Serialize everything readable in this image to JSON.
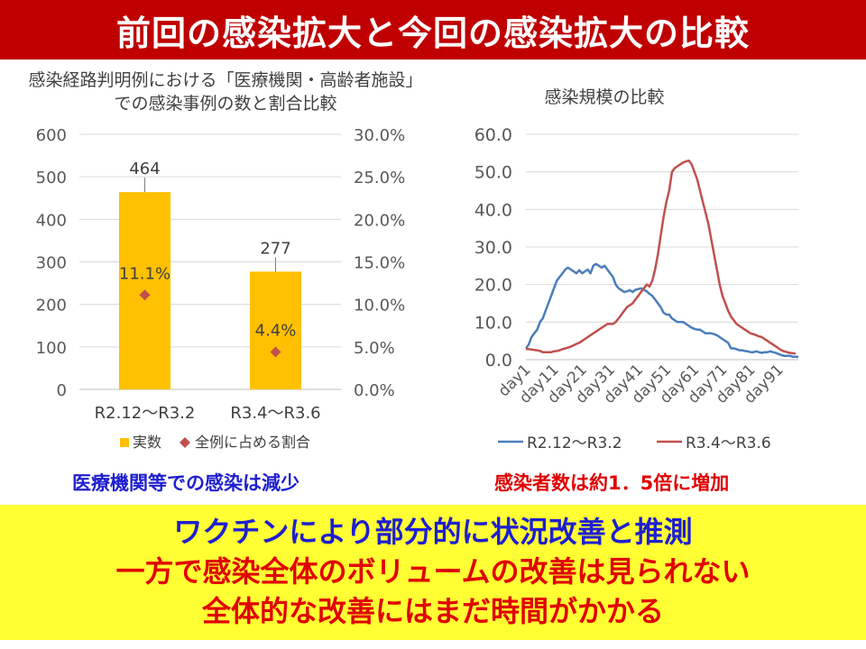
{
  "title": "前回の感染拡大と今回の感染拡大の比較",
  "captions": {
    "left": "医療機関等での感染は減少",
    "right": "感染者数は約1．5倍に増加"
  },
  "bottom": {
    "line1": "ワクチンにより部分的に状況改善と推測",
    "line2": "一方で感染全体のボリュームの改善は見られない",
    "line3": "全体的な改善にはまだ時間がかかる"
  },
  "chart_data": [
    {
      "type": "bar",
      "title": "感染経路判明例における「医療機関・高齢者施設」での感染事例の数と割合比較",
      "title_lines": [
        "感染経路判明例における「医療機関・高齢者施設」",
        "での感染事例の数と割合比較"
      ],
      "categories": [
        "R2.12～R3.2",
        "R3.4～R3.6"
      ],
      "series": [
        {
          "name": "実数",
          "type": "bar",
          "axis": "left",
          "values": [
            464,
            277
          ],
          "labels": [
            "464",
            "277"
          ],
          "color": "#ffc000"
        },
        {
          "name": "全例に占める割合",
          "type": "marker",
          "axis": "right",
          "values": [
            11.1,
            4.4
          ],
          "labels": [
            "11.1%",
            "4.4%"
          ],
          "color": "#c0504d"
        }
      ],
      "ylim": [
        0,
        600
      ],
      "yticks": [
        "0",
        "100",
        "200",
        "300",
        "400",
        "500",
        "600"
      ],
      "y2lim": [
        0,
        30
      ],
      "y2ticks": [
        "0.0%",
        "5.0%",
        "10.0%",
        "15.0%",
        "20.0%",
        "25.0%",
        "30.0%"
      ],
      "grid": true,
      "legend": "bottom"
    },
    {
      "type": "line",
      "title": "感染規模の比較",
      "x_ticks": [
        "day1",
        "day11",
        "day21",
        "day31",
        "day41",
        "day51",
        "day61",
        "day71",
        "day81",
        "day91"
      ],
      "ylim": [
        0,
        60
      ],
      "yticks": [
        "0.0",
        "10.0",
        "20.0",
        "30.0",
        "40.0",
        "50.0",
        "60.0"
      ],
      "grid": true,
      "legend": "bottom",
      "series": [
        {
          "name": "R2.12～R3.2",
          "color": "#4a7ebb",
          "values": [
            3,
            4,
            6,
            7,
            8,
            10,
            11,
            13,
            15,
            17,
            19,
            21,
            22,
            23,
            24,
            24.5,
            24,
            23.5,
            23,
            23.8,
            23,
            23.5,
            24,
            23,
            25,
            25.5,
            25,
            24.5,
            25,
            24,
            23,
            22,
            20,
            19,
            18.5,
            18,
            18.2,
            18.5,
            18,
            18.6,
            18.8,
            19,
            18.6,
            18.2,
            17.5,
            17,
            16,
            15,
            14,
            12.5,
            12,
            12,
            11,
            10.5,
            10,
            10,
            10,
            9.5,
            9,
            8.5,
            8.2,
            8,
            8,
            7.5,
            7,
            7,
            7,
            6.8,
            6.5,
            6,
            5.5,
            5,
            4.5,
            3,
            3,
            2.8,
            2.5,
            2.5,
            2.3,
            2.2,
            2,
            2,
            2.2,
            2,
            1.8,
            2,
            2,
            2.2,
            2,
            1.8,
            1.5,
            1.2,
            1,
            1,
            1,
            0.8,
            0.8,
            0.7
          ]
        },
        {
          "name": "R3.4～R3.6",
          "color": "#c0504d",
          "values": [
            2.8,
            2.8,
            2.7,
            2.6,
            2.5,
            2.3,
            2,
            2,
            2,
            2,
            2.2,
            2.3,
            2.5,
            2.8,
            3,
            3.2,
            3.5,
            3.8,
            4.2,
            4.5,
            5,
            5.5,
            6,
            6.5,
            7,
            7.5,
            8,
            8.5,
            9,
            9.5,
            9.5,
            9.5,
            10,
            11,
            12,
            13,
            14,
            14.5,
            15,
            16,
            17,
            18,
            19,
            20,
            19.5,
            21,
            24,
            28,
            33,
            38,
            42,
            45,
            50,
            51,
            51.5,
            52,
            52.5,
            52.8,
            53,
            52,
            50,
            48,
            45,
            42,
            39,
            36,
            32,
            28,
            24,
            20,
            17,
            15,
            13,
            11.5,
            10.5,
            9.5,
            9,
            8.5,
            8,
            7.5,
            7,
            6.8,
            6.5,
            6.2,
            6,
            5.5,
            5,
            4.5,
            4,
            3.5,
            3,
            2.5,
            2.2,
            2,
            1.8,
            1.7,
            1.6
          ]
        }
      ]
    }
  ]
}
